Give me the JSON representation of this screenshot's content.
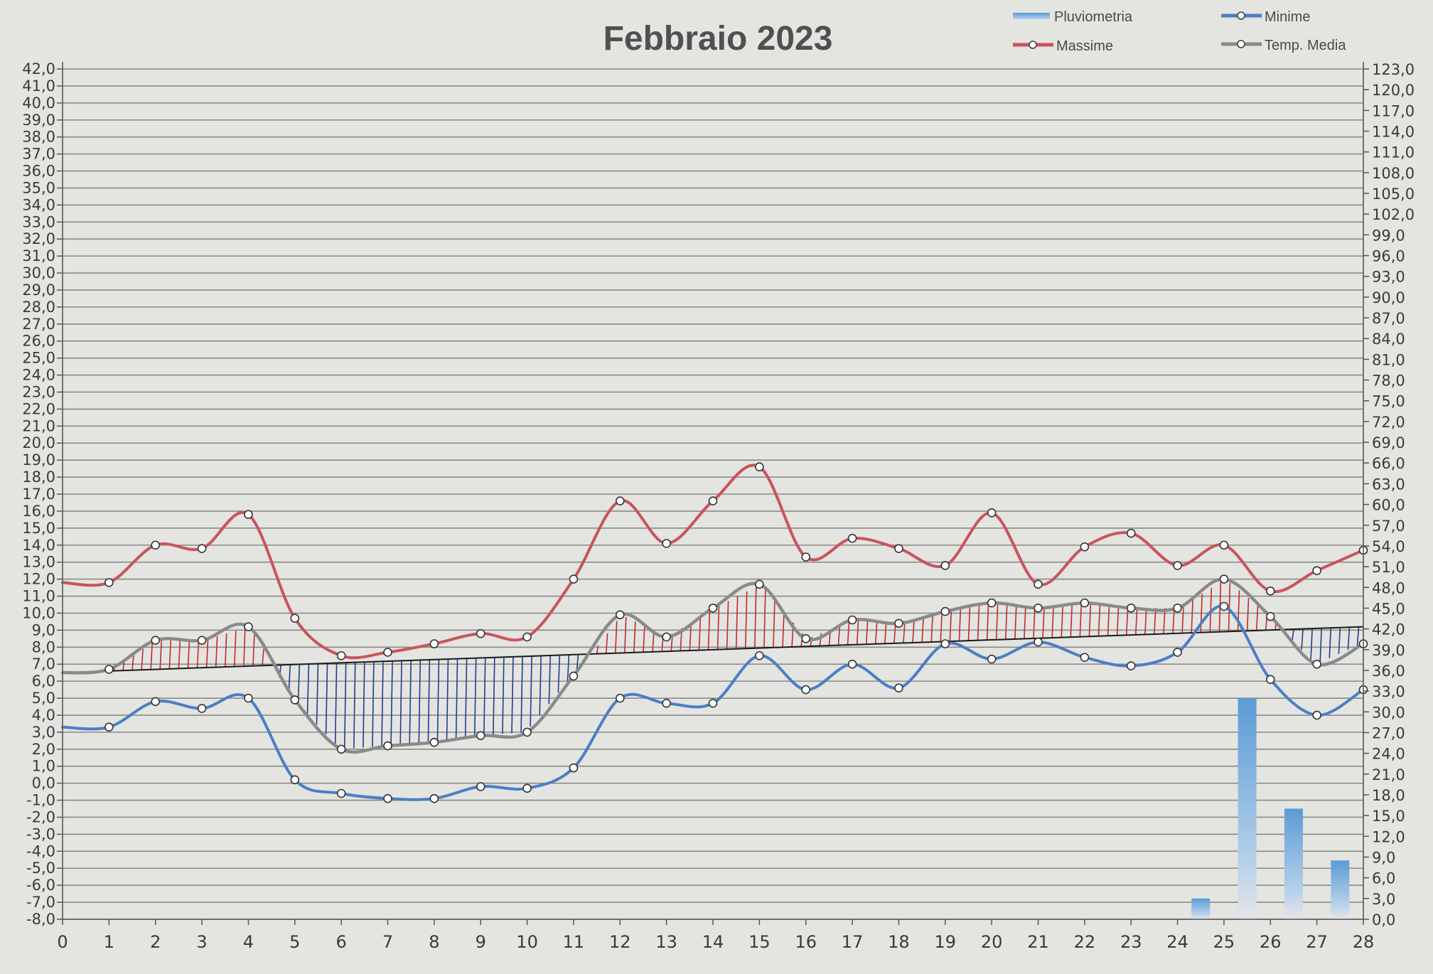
{
  "chart_data": {
    "type": "line",
    "title": "Febbraio 2023",
    "legend": {
      "placement": "top-right",
      "entries": [
        "Pluviometria",
        "Minime",
        "Massime",
        "Temp. Media"
      ]
    },
    "colors": {
      "massime": "#c9545c",
      "minime": "#4a7fc4",
      "media": "#8a8a8a",
      "pluviometria": "#6fa8dc",
      "hatch_warm": "#c42a2a",
      "hatch_cold": "#1f3f8f",
      "trend": "#1a1a1a",
      "grid": "#8a8a88"
    },
    "x": [
      0,
      1,
      2,
      3,
      4,
      5,
      6,
      7,
      8,
      9,
      10,
      11,
      12,
      13,
      14,
      15,
      16,
      17,
      18,
      19,
      20,
      21,
      22,
      23,
      24,
      25,
      26,
      27,
      28
    ],
    "y_left": {
      "min": -8,
      "max": 42,
      "step": 1,
      "tick_labels": [
        "42,0",
        "41,0",
        "40,0",
        "39,0",
        "38,0",
        "37,0",
        "36,0",
        "35,0",
        "34,0",
        "33,0",
        "32,0",
        "31,0",
        "30,0",
        "29,0",
        "28,0",
        "27,0",
        "26,0",
        "25,0",
        "24,0",
        "23,0",
        "22,0",
        "21,0",
        "20,0",
        "19,0",
        "18,0",
        "17,0",
        "16,0",
        "15,0",
        "14,0",
        "13,0",
        "12,0",
        "11,0",
        "10,0",
        "9,0",
        "8,0",
        "7,0",
        "6,0",
        "5,0",
        "4,0",
        "3,0",
        "2,0",
        "1,0",
        "0,0",
        "-1,0",
        "-2,0",
        "-3,0",
        "-4,0",
        "-5,0",
        "-6,0",
        "-7,0",
        "-8,0"
      ]
    },
    "y_right": {
      "min": 0,
      "max": 123,
      "step": 3,
      "tick_labels": [
        "123,0",
        "120,0",
        "117,0",
        "114,0",
        "111,0",
        "108,0",
        "105,0",
        "102,0",
        "99,0",
        "96,0",
        "93,0",
        "90,0",
        "87,0",
        "84,0",
        "81,0",
        "78,0",
        "75,0",
        "72,0",
        "69,0",
        "66,0",
        "63,0",
        "60,0",
        "57,0",
        "54,0",
        "51,0",
        "48,0",
        "45,0",
        "42,0",
        "39,0",
        "36,0",
        "33,0",
        "30,0",
        "27,0",
        "24,0",
        "21,0",
        "18,0",
        "15,0",
        "12,0",
        "9,0",
        "6,0",
        "3,0",
        "0,0"
      ]
    },
    "grid": true,
    "series": [
      {
        "name": "Massime",
        "axis": "left",
        "x": [
          0,
          1,
          2,
          3,
          4,
          5,
          6,
          7,
          8,
          9,
          10,
          11,
          12,
          13,
          14,
          15,
          16,
          17,
          18,
          19,
          20,
          21,
          22,
          23,
          24,
          25,
          26,
          27,
          28
        ],
        "values": [
          11.8,
          11.8,
          14.0,
          13.8,
          15.8,
          9.7,
          7.5,
          7.7,
          8.2,
          8.8,
          8.6,
          12.0,
          16.6,
          14.1,
          16.6,
          18.6,
          13.3,
          14.4,
          13.8,
          12.8,
          15.9,
          11.7,
          13.9,
          14.7,
          12.8,
          14.0,
          11.3,
          12.5,
          13.7
        ]
      },
      {
        "name": "Minime",
        "axis": "left",
        "x": [
          0,
          1,
          2,
          3,
          4,
          5,
          6,
          7,
          8,
          9,
          10,
          11,
          12,
          13,
          14,
          15,
          16,
          17,
          18,
          19,
          20,
          21,
          22,
          23,
          24,
          25,
          26,
          27,
          28
        ],
        "values": [
          3.3,
          3.3,
          4.8,
          4.4,
          5.0,
          0.2,
          -0.6,
          -0.9,
          -0.9,
          -0.2,
          -0.3,
          0.9,
          5.0,
          4.7,
          4.7,
          7.5,
          5.5,
          7.0,
          5.6,
          8.2,
          7.3,
          8.3,
          7.4,
          6.9,
          7.7,
          10.4,
          6.1,
          4.0,
          5.5
        ]
      },
      {
        "name": "Temp. Media",
        "axis": "left",
        "x": [
          0,
          1,
          2,
          3,
          4,
          5,
          6,
          7,
          8,
          9,
          10,
          11,
          12,
          13,
          14,
          15,
          16,
          17,
          18,
          19,
          20,
          21,
          22,
          23,
          24,
          25,
          26,
          27,
          28
        ],
        "values": [
          6.5,
          6.7,
          8.4,
          8.4,
          9.2,
          4.9,
          2.0,
          2.2,
          2.4,
          2.8,
          3.0,
          6.3,
          9.9,
          8.6,
          10.3,
          11.7,
          8.5,
          9.6,
          9.4,
          10.1,
          10.6,
          10.3,
          10.6,
          10.3,
          10.3,
          12.0,
          9.8,
          7.0,
          8.2
        ]
      },
      {
        "name": "Pluviometria",
        "type": "bar",
        "axis": "right",
        "x": [
          24.5,
          25.5,
          26.5,
          27.5
        ],
        "values": [
          3.0,
          32.0,
          16.0,
          8.5
        ]
      }
    ],
    "trend_line": {
      "from": [
        0,
        6.5
      ],
      "to": [
        28,
        9.2
      ]
    }
  }
}
